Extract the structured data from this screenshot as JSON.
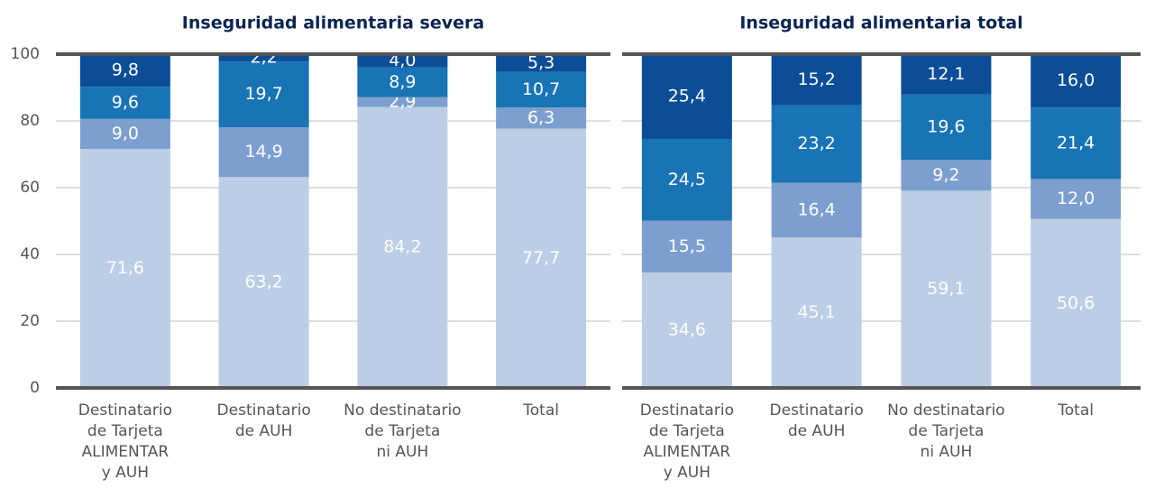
{
  "chart_data": [
    {
      "type": "stacked_bar",
      "title": "Inseguridad alimentaria severa",
      "categories": [
        [
          "Destinatario",
          "de Tarjeta",
          "ALIMENTAR",
          "y AUH"
        ],
        [
          "Destinatario",
          "de AUH"
        ],
        [
          "No destinatario",
          "de Tarjeta",
          "ni AUH"
        ],
        [
          "Total"
        ]
      ],
      "series": [
        {
          "color": "#bccde6",
          "values": [
            71.6,
            63.2,
            84.2,
            77.7
          ],
          "value_labels": [
            "71,6",
            "63,2",
            "84,2",
            "77,7"
          ]
        },
        {
          "color": "#7c9fcf",
          "values": [
            9.0,
            14.9,
            2.9,
            6.3
          ],
          "value_labels": [
            "9,0",
            "14,9",
            "2,9",
            "6,3"
          ]
        },
        {
          "color": "#1874b5",
          "values": [
            9.6,
            19.7,
            8.9,
            10.7
          ],
          "value_labels": [
            "9,6",
            "19,7",
            "8,9",
            "10,7"
          ]
        },
        {
          "color": "#0c4d97",
          "values": [
            9.8,
            2.2,
            4.0,
            5.3
          ],
          "value_labels": [
            "9,8",
            "2,2",
            "4,0",
            "5,3"
          ]
        }
      ],
      "ylim": [
        0,
        100
      ],
      "yticks": [
        0,
        20,
        40,
        60,
        80,
        100
      ],
      "grid": true,
      "show_tick_labels": true
    },
    {
      "type": "stacked_bar",
      "title": "Inseguridad alimentaria total",
      "categories": [
        [
          "Destinatario",
          "de Tarjeta",
          "ALIMENTAR",
          "y AUH"
        ],
        [
          "Destinatario",
          "de AUH"
        ],
        [
          "No destinatario",
          "de Tarjeta",
          "ni AUH"
        ],
        [
          "Total"
        ]
      ],
      "series": [
        {
          "color": "#bccde6",
          "values": [
            34.6,
            45.1,
            59.1,
            50.6
          ],
          "value_labels": [
            "34,6",
            "45,1",
            "59,1",
            "50,6"
          ]
        },
        {
          "color": "#7c9fcf",
          "values": [
            15.5,
            16.4,
            9.2,
            12.0
          ],
          "value_labels": [
            "15,5",
            "16,4",
            "9,2",
            "12,0"
          ]
        },
        {
          "color": "#1874b5",
          "values": [
            24.5,
            23.2,
            19.6,
            21.4
          ],
          "value_labels": [
            "24,5",
            "23,2",
            "19,6",
            "21,4"
          ]
        },
        {
          "color": "#0c4d97",
          "values": [
            25.4,
            15.2,
            12.1,
            16.0
          ],
          "value_labels": [
            "25,4",
            "15,2",
            "12,1",
            "16,0"
          ]
        }
      ],
      "ylim": [
        0,
        100
      ],
      "yticks": [
        0,
        20,
        40,
        60,
        80,
        100
      ],
      "grid": true,
      "show_tick_labels": false
    }
  ]
}
